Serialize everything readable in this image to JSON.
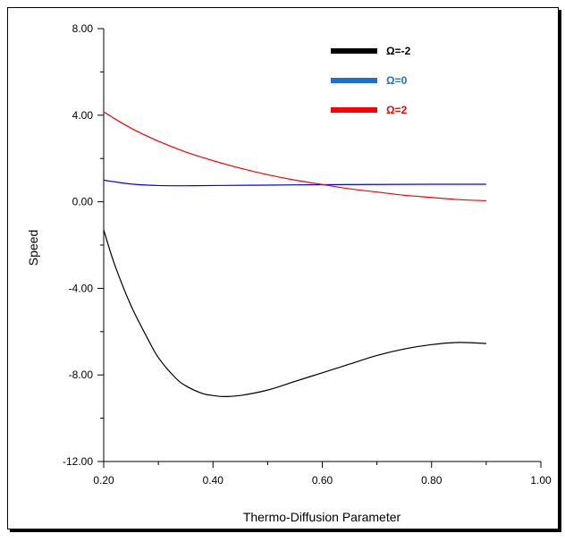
{
  "chart_data": {
    "type": "line",
    "title": "",
    "xlabel": "Thermo-Diffusion Parameter",
    "ylabel": "Speed",
    "xlim": [
      0.2,
      1.0
    ],
    "ylim": [
      -12,
      8
    ],
    "x_ticks": [
      0.2,
      0.4,
      0.6,
      0.8,
      1.0
    ],
    "x_tick_labels": [
      "0.20",
      "0.40",
      "0.60",
      "0.80",
      "1.00"
    ],
    "y_ticks": [
      8,
      4,
      0,
      -4,
      -8,
      -12
    ],
    "y_tick_labels": [
      "8.00",
      "4.00",
      "0.00",
      "-4.00",
      "-8.00",
      "-12.00"
    ],
    "grid": false,
    "legend_position": "top-right",
    "series": [
      {
        "name": "Ω=-2",
        "color": "#000000",
        "x": [
          0.2,
          0.22,
          0.25,
          0.28,
          0.3,
          0.33,
          0.35,
          0.38,
          0.4,
          0.42,
          0.45,
          0.5,
          0.55,
          0.6,
          0.65,
          0.7,
          0.75,
          0.8,
          0.85,
          0.9
        ],
        "y": [
          -1.3,
          -2.9,
          -4.8,
          -6.3,
          -7.2,
          -8.1,
          -8.5,
          -8.85,
          -8.95,
          -9.0,
          -8.95,
          -8.7,
          -8.3,
          -7.9,
          -7.5,
          -7.1,
          -6.8,
          -6.6,
          -6.5,
          -6.55
        ]
      },
      {
        "name": "Ω=0",
        "color": "#0000ff",
        "x": [
          0.2,
          0.25,
          0.3,
          0.35,
          0.4,
          0.5,
          0.6,
          0.7,
          0.8,
          0.9
        ],
        "y": [
          1.0,
          0.82,
          0.75,
          0.74,
          0.75,
          0.77,
          0.79,
          0.8,
          0.81,
          0.81
        ]
      },
      {
        "name": "Ω=2",
        "color": "#ff0000",
        "x": [
          0.2,
          0.25,
          0.3,
          0.35,
          0.4,
          0.45,
          0.5,
          0.55,
          0.6,
          0.65,
          0.7,
          0.75,
          0.8,
          0.85,
          0.9
        ],
        "y": [
          4.15,
          3.4,
          2.8,
          2.3,
          1.9,
          1.55,
          1.25,
          1.0,
          0.8,
          0.6,
          0.45,
          0.3,
          0.2,
          0.1,
          0.05
        ]
      }
    ],
    "legend_colors": [
      "#000000",
      "#1f6fd0",
      "#ff0000"
    ]
  }
}
